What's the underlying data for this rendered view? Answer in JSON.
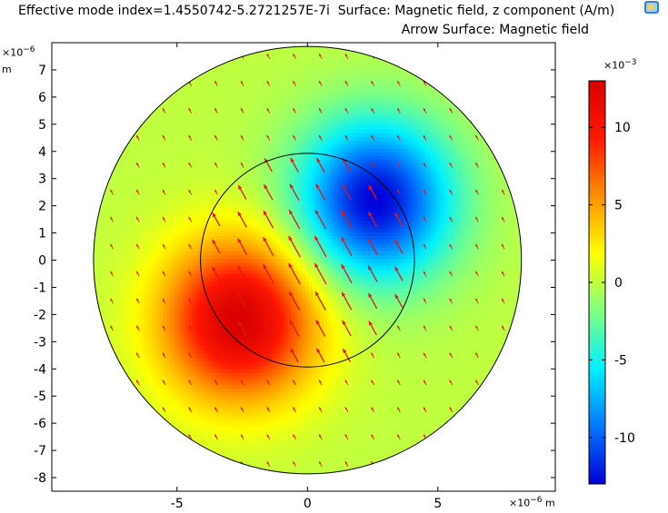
{
  "chart_data": {
    "type": "heatmap",
    "title_line1": "Effective mode index=1.4550742-5.2721257E-7i  Surface: Magnetic field, z component (A/m)",
    "title_line2": "Arrow Surface: Magnetic field",
    "x_unit_label": "×10",
    "x_unit_exp": "−6",
    "x_unit_suffix": " m",
    "y_unit_label": "×10",
    "y_unit_exp": "−6",
    "y_unit_suffix": "m",
    "xlim": [
      -9.8,
      9.5
    ],
    "ylim": [
      -8.5,
      8
    ],
    "x_ticks": [
      -5,
      0,
      5
    ],
    "x_tick_labels": [
      "-5",
      "0",
      "5"
    ],
    "y_ticks": [
      7,
      6,
      5,
      4,
      3,
      2,
      1,
      0,
      -1,
      -2,
      -3,
      -4,
      -5,
      -6,
      -7,
      -8
    ],
    "y_tick_labels": [
      "7",
      "6",
      "5",
      "4",
      "3",
      "2",
      "1",
      "0",
      "-1",
      "-2",
      "-3",
      "-4",
      "-5",
      "-6",
      "-7",
      "-8"
    ],
    "outer_circle_radius": 8.2,
    "core_circle_radius": 4.1,
    "colorbar": {
      "unit_label": "×10",
      "unit_exp": "−3",
      "range": [
        -13,
        13
      ],
      "ticks": [
        10,
        5,
        0,
        -5,
        -10
      ],
      "tick_labels": [
        "10",
        "5",
        "0",
        "-5",
        "-10"
      ],
      "colormap": "rainbow",
      "colors": [
        "#0000d8",
        "#0078ff",
        "#00f0ff",
        "#80ff80",
        "#ffff00",
        "#ff9000",
        "#ff1800",
        "#d80000"
      ]
    },
    "field": {
      "peak_value": 13,
      "positive_lobe_center": [
        -2.6,
        -2.2
      ],
      "negative_lobe_center": [
        2.6,
        2.2
      ],
      "arrow_color": "#e01818"
    },
    "logo_icon": "comsol-logo-icon"
  }
}
